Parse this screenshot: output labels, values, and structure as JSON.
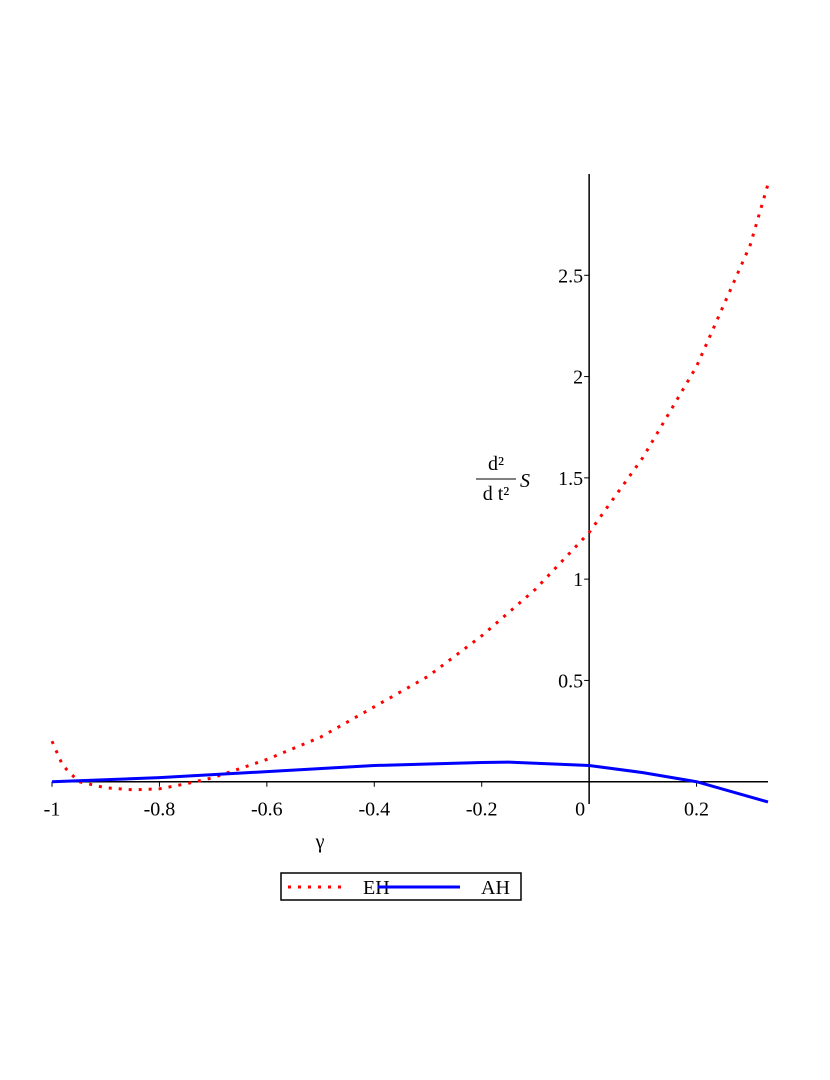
{
  "chart_data": {
    "type": "line",
    "x_label": "γ",
    "y_label": {
      "numerator": "d²",
      "denominator": "d t²",
      "symbol": "S"
    },
    "xlim": [
      -1,
      0.333
    ],
    "ylim": [
      -0.11,
      3.0
    ],
    "xticks": [
      -1,
      -0.8,
      -0.6,
      -0.4,
      -0.2,
      0,
      0.2
    ],
    "yticks": [
      0.5,
      1,
      1.5,
      2,
      2.5
    ],
    "legend": "bottom",
    "series": [
      {
        "name": "EH",
        "color": "#ff0000",
        "style": "dotted",
        "x": [
          -1,
          -0.98,
          -0.95,
          -0.9,
          -0.85,
          -0.8,
          -0.75,
          -0.7,
          -0.6,
          -0.5,
          -0.4,
          -0.3,
          -0.2,
          -0.1,
          0,
          0.1,
          0.2,
          0.3,
          0.333
        ],
        "values": [
          0.2,
          0.08,
          0.0,
          -0.03,
          -0.04,
          -0.035,
          -0.01,
          0.02,
          0.11,
          0.22,
          0.37,
          0.52,
          0.72,
          0.95,
          1.23,
          1.6,
          2.05,
          2.65,
          2.95
        ]
      },
      {
        "name": "AH",
        "color": "#0000ff",
        "style": "solid",
        "x": [
          -1,
          -0.8,
          -0.6,
          -0.4,
          -0.2,
          -0.15,
          0,
          0.1,
          0.2,
          0.333
        ],
        "values": [
          0,
          0.02,
          0.05,
          0.08,
          0.095,
          0.097,
          0.08,
          0.045,
          0.0,
          -0.1
        ]
      }
    ]
  }
}
